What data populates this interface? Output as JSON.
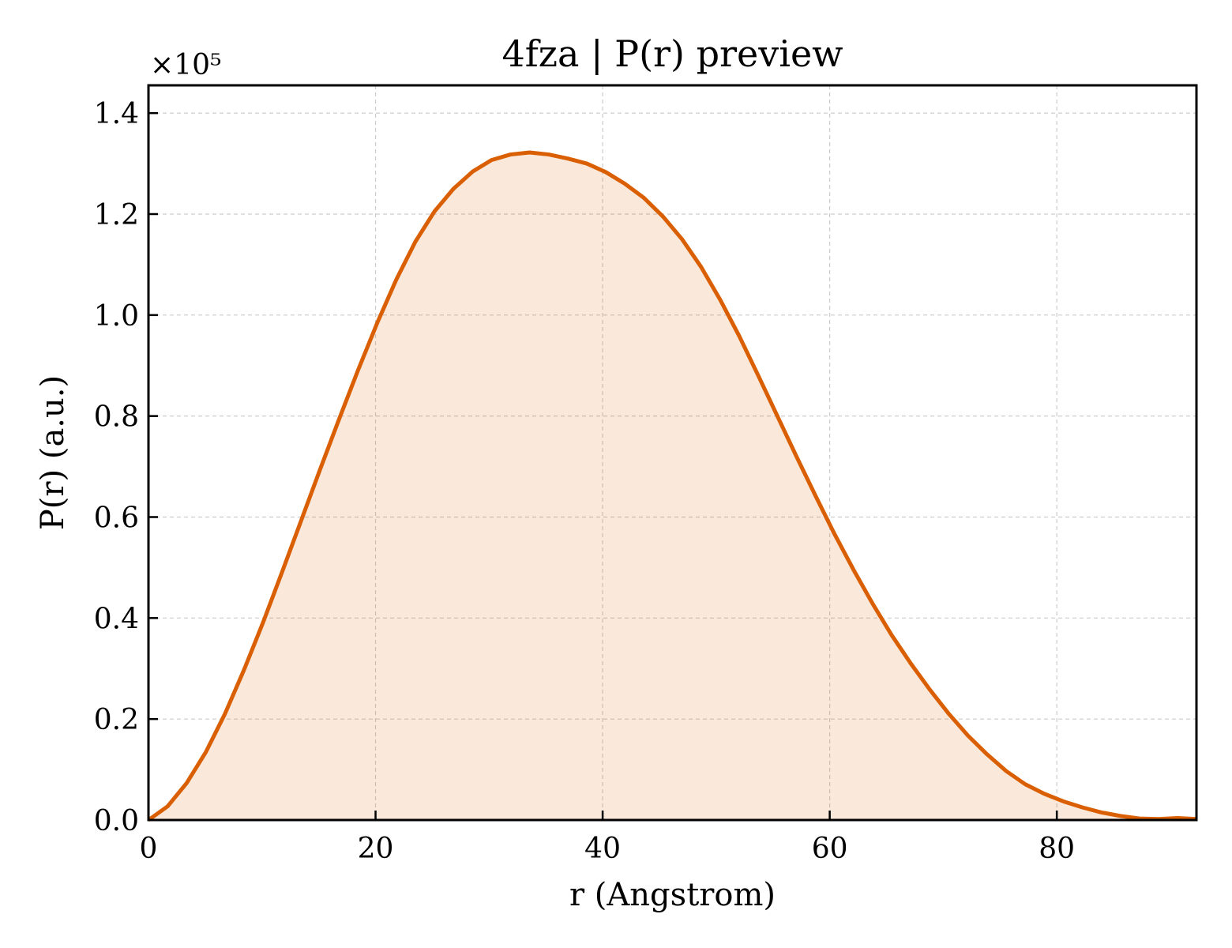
{
  "chart_data": {
    "type": "area",
    "title": "4fza | P(r) preview",
    "xlabel": "r (Angstrom)",
    "ylabel": "P(r) (a.u.)",
    "y_offset_label": "×10⁵",
    "y_scale_factor": 100000,
    "xlim": [
      0,
      92.3
    ],
    "ylim": [
      0,
      1.455
    ],
    "x_ticks": [
      0,
      20,
      40,
      60,
      80
    ],
    "x_tick_labels": [
      "0",
      "20",
      "40",
      "60",
      "80"
    ],
    "y_ticks": [
      0.0,
      0.2,
      0.4,
      0.6,
      0.8,
      1.0,
      1.2,
      1.4
    ],
    "y_tick_labels": [
      "0.0",
      "0.2",
      "0.4",
      "0.6",
      "0.8",
      "1.0",
      "1.2",
      "1.4"
    ],
    "grid": true,
    "colors": {
      "line": "#d95f02",
      "fill": "#d95f02",
      "fill_opacity": 0.14,
      "grid": "#cccccc",
      "axes": "#000000"
    },
    "series": [
      {
        "x": [
          0,
          1.68,
          3.36,
          5.04,
          6.71,
          8.39,
          10.07,
          11.75,
          13.43,
          15.11,
          16.79,
          18.46,
          20.14,
          21.82,
          23.5,
          25.18,
          26.86,
          28.54,
          30.21,
          31.89,
          33.57,
          35.25,
          36.93,
          38.61,
          40.29,
          41.96,
          43.64,
          45.32,
          47.0,
          48.68,
          50.36,
          52.04,
          53.71,
          55.39,
          57.07,
          58.75,
          60.43,
          62.11,
          63.79,
          65.46,
          67.14,
          68.82,
          70.5,
          72.18,
          73.86,
          75.54,
          77.21,
          78.89,
          80.57,
          82.25,
          83.93,
          85.61,
          87.29,
          88.96,
          90.64,
          92.3
        ],
        "y": [
          0.0,
          0.027,
          0.073,
          0.134,
          0.209,
          0.296,
          0.39,
          0.49,
          0.592,
          0.694,
          0.794,
          0.891,
          0.984,
          1.07,
          1.145,
          1.205,
          1.25,
          1.284,
          1.307,
          1.318,
          1.322,
          1.318,
          1.31,
          1.3,
          1.283,
          1.26,
          1.232,
          1.195,
          1.15,
          1.095,
          1.03,
          0.958,
          0.88,
          0.8,
          0.72,
          0.642,
          0.566,
          0.495,
          0.428,
          0.366,
          0.31,
          0.258,
          0.21,
          0.167,
          0.13,
          0.097,
          0.071,
          0.052,
          0.037,
          0.025,
          0.015,
          0.008,
          0.003,
          0.002,
          0.004,
          0.002
        ]
      }
    ]
  }
}
